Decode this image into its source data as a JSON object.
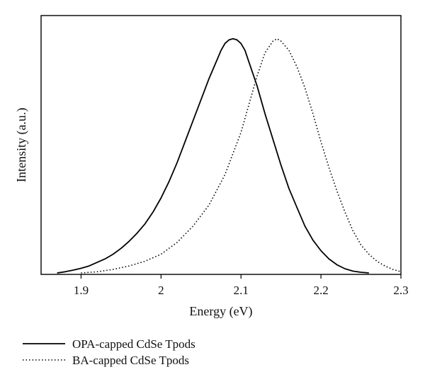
{
  "chart_data": {
    "type": "line",
    "title": "",
    "xlabel": "Energy (eV)",
    "ylabel": "Intensity (a.u.)",
    "xlim": [
      1.85,
      2.3
    ],
    "ylim": [
      0,
      1
    ],
    "xticks": [
      "1.9",
      "2",
      "2.1",
      "2.2",
      "2.3"
    ],
    "yticks": [],
    "grid": false,
    "legend_position": "below",
    "series": [
      {
        "name": "OPA-capped CdSe Tpods",
        "style": "solid",
        "color": "#000000",
        "x": [
          1.87,
          1.88,
          1.89,
          1.9,
          1.91,
          1.92,
          1.93,
          1.94,
          1.95,
          1.96,
          1.97,
          1.98,
          1.99,
          2.0,
          2.01,
          2.02,
          2.03,
          2.04,
          2.05,
          2.06,
          2.07,
          2.075,
          2.08,
          2.085,
          2.09,
          2.095,
          2.1,
          2.105,
          2.11,
          2.12,
          2.13,
          2.14,
          2.15,
          2.16,
          2.17,
          2.18,
          2.19,
          2.2,
          2.21,
          2.22,
          2.23,
          2.24,
          2.25,
          2.26
        ],
        "y": [
          0.0,
          0.005,
          0.012,
          0.02,
          0.03,
          0.045,
          0.06,
          0.08,
          0.105,
          0.135,
          0.17,
          0.21,
          0.26,
          0.32,
          0.39,
          0.47,
          0.56,
          0.65,
          0.74,
          0.83,
          0.91,
          0.95,
          0.98,
          0.995,
          1.0,
          0.995,
          0.98,
          0.95,
          0.9,
          0.8,
          0.68,
          0.57,
          0.46,
          0.36,
          0.28,
          0.2,
          0.14,
          0.095,
          0.06,
          0.035,
          0.018,
          0.008,
          0.003,
          0.0
        ]
      },
      {
        "name": "BA-capped CdSe Tpods",
        "style": "dotted",
        "color": "#000000",
        "x": [
          1.9,
          1.92,
          1.94,
          1.96,
          1.98,
          2.0,
          2.02,
          2.04,
          2.06,
          2.08,
          2.1,
          2.11,
          2.12,
          2.13,
          2.14,
          2.145,
          2.15,
          2.16,
          2.17,
          2.18,
          2.19,
          2.2,
          2.21,
          2.22,
          2.23,
          2.24,
          2.25,
          2.26,
          2.27,
          2.28,
          2.29,
          2.3
        ],
        "y": [
          0.0,
          0.005,
          0.015,
          0.03,
          0.05,
          0.08,
          0.13,
          0.2,
          0.29,
          0.42,
          0.6,
          0.72,
          0.84,
          0.94,
          0.99,
          1.0,
          0.99,
          0.95,
          0.88,
          0.79,
          0.68,
          0.56,
          0.45,
          0.35,
          0.26,
          0.18,
          0.12,
          0.08,
          0.05,
          0.03,
          0.015,
          0.005
        ]
      }
    ]
  }
}
